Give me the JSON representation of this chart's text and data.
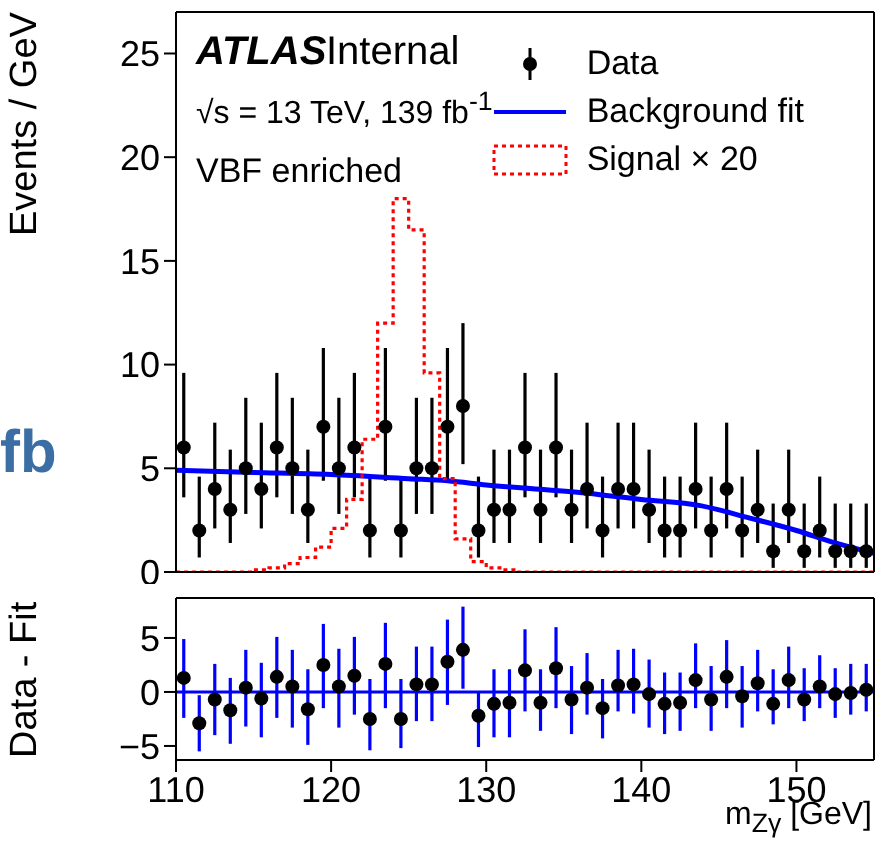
{
  "chart_data": [
    {
      "type": "scatter",
      "ylabel": "Events / GeV",
      "annotations": [
        "ATLAS",
        "Internal",
        "√s = 13 TeV, 139 fb$^{-1}$",
        "VBF enriched",
        "fb"
      ],
      "xlim": [
        110,
        155
      ],
      "xticks": [
        110,
        120,
        130,
        140,
        150
      ],
      "ylim": [
        0,
        27
      ],
      "yticks": [
        0,
        5,
        10,
        15,
        20,
        25
      ],
      "tick_labels": "y",
      "legend": "top right",
      "series": [
        {
          "name": "Data",
          "type": "scatter",
          "color": "#000000",
          "x": [
            110.5,
            111.5,
            112.5,
            113.5,
            114.5,
            115.5,
            116.5,
            117.5,
            118.5,
            119.5,
            120.5,
            121.5,
            122.5,
            123.5,
            124.5,
            125.5,
            126.5,
            127.5,
            128.5,
            129.5,
            130.5,
            131.5,
            132.5,
            133.5,
            134.5,
            135.5,
            136.5,
            137.5,
            138.5,
            139.5,
            140.5,
            141.5,
            142.5,
            143.5,
            144.5,
            145.5,
            146.5,
            147.5,
            148.5,
            149.5,
            150.5,
            151.5,
            152.5,
            153.5,
            154.5
          ],
          "values": [
            6,
            2,
            4,
            3,
            5,
            4,
            6,
            5,
            3,
            7,
            5,
            6,
            2,
            7,
            2,
            5,
            5,
            7,
            8,
            2,
            3,
            3,
            6,
            3,
            6,
            3,
            4,
            2,
            4,
            4,
            3,
            2,
            2,
            4,
            2,
            4,
            2,
            3,
            1,
            3,
            1,
            2,
            1,
            1,
            1
          ],
          "errors": [
            [
              3.6,
              9.6
            ],
            [
              0.7,
              4.6
            ],
            [
              2.1,
              7.2
            ],
            [
              1.4,
              5.9
            ],
            [
              2.8,
              8.4
            ],
            [
              2.1,
              7.2
            ],
            [
              3.6,
              9.6
            ],
            [
              2.8,
              8.4
            ],
            [
              1.4,
              5.9
            ],
            [
              4.4,
              10.8
            ],
            [
              2.8,
              8.4
            ],
            [
              3.6,
              9.6
            ],
            [
              0.7,
              4.6
            ],
            [
              4.4,
              10.8
            ],
            [
              0.7,
              4.6
            ],
            [
              2.8,
              8.4
            ],
            [
              2.8,
              8.4
            ],
            [
              4.4,
              10.8
            ],
            [
              5.2,
              12.0
            ],
            [
              0.7,
              4.6
            ],
            [
              1.4,
              5.9
            ],
            [
              1.4,
              5.9
            ],
            [
              3.6,
              9.6
            ],
            [
              1.4,
              5.9
            ],
            [
              3.6,
              9.6
            ],
            [
              1.4,
              5.9
            ],
            [
              2.1,
              7.2
            ],
            [
              0.7,
              4.6
            ],
            [
              2.1,
              7.2
            ],
            [
              2.1,
              7.2
            ],
            [
              1.4,
              5.9
            ],
            [
              0.7,
              4.6
            ],
            [
              0.7,
              4.6
            ],
            [
              2.1,
              7.2
            ],
            [
              0.7,
              4.6
            ],
            [
              2.1,
              7.2
            ],
            [
              0.7,
              4.6
            ],
            [
              1.4,
              5.9
            ],
            [
              0.2,
              3.3
            ],
            [
              1.4,
              5.9
            ],
            [
              0.2,
              3.3
            ],
            [
              0.7,
              4.6
            ],
            [
              0.2,
              3.3
            ],
            [
              0.2,
              3.3
            ],
            [
              0.2,
              3.3
            ]
          ]
        },
        {
          "name": "Background fit",
          "type": "line",
          "color": "#0000ff",
          "x": [
            110,
            115,
            120,
            125,
            127.5,
            130,
            136.5,
            140,
            143.8,
            147,
            150,
            152.5,
            155
          ],
          "values": [
            4.9,
            4.8,
            4.7,
            4.5,
            4.4,
            4.2,
            3.8,
            3.5,
            3.2,
            2.6,
            2.0,
            1.4,
            0.9
          ]
        },
        {
          "name": "Signal × 20",
          "type": "step",
          "color": "#ff0000",
          "line_style": "dotted",
          "x": [
            110,
            111,
            112,
            113,
            114,
            115,
            116,
            117,
            118,
            119,
            120,
            121,
            122,
            123,
            124,
            125,
            126,
            127,
            128,
            129,
            130,
            131,
            132,
            133,
            134,
            135,
            136,
            137,
            138,
            139,
            140,
            141,
            142,
            143,
            144,
            145,
            146,
            147,
            148,
            149,
            150,
            151,
            152,
            153,
            154,
            155
          ],
          "values": [
            0,
            0,
            0,
            0,
            0,
            0.1,
            0.2,
            0.4,
            0.7,
            1.2,
            2.1,
            3.5,
            6.4,
            12,
            18,
            16.5,
            9.6,
            4.5,
            1.6,
            0.5,
            0.2,
            0.1,
            0,
            0,
            0,
            0,
            0,
            0,
            0,
            0,
            0,
            0,
            0,
            0,
            0,
            0,
            0,
            0,
            0,
            0,
            0,
            0,
            0,
            0,
            0,
            0
          ]
        }
      ]
    },
    {
      "type": "scatter",
      "ylabel": "Data - Fit",
      "xlabel": "m$_{Zγ}$ [GeV]",
      "xlim": [
        110,
        155
      ],
      "xticks": [
        110,
        120,
        130,
        140,
        150
      ],
      "ylim": [
        -6.3,
        8.7
      ],
      "yticks": [
        -5,
        0,
        5
      ],
      "ref_lines": [
        {
          "axis": "y",
          "value": 0,
          "color": "#0000ff"
        }
      ],
      "series": [
        {
          "type": "scatter",
          "color": "#000000",
          "x": [
            110.5,
            111.5,
            112.5,
            113.5,
            114.5,
            115.5,
            116.5,
            117.5,
            118.5,
            119.5,
            120.5,
            121.5,
            122.5,
            123.5,
            124.5,
            125.5,
            126.5,
            127.5,
            128.5,
            129.5,
            130.5,
            131.5,
            132.5,
            133.5,
            134.5,
            135.5,
            136.5,
            137.5,
            138.5,
            139.5,
            140.5,
            141.5,
            142.5,
            143.5,
            144.5,
            145.5,
            146.5,
            147.5,
            148.5,
            149.5,
            150.5,
            151.5,
            152.5,
            153.5,
            154.5
          ],
          "values": [
            1.3,
            -2.9,
            -0.7,
            -1.7,
            0.4,
            -0.6,
            1.4,
            0.5,
            -1.6,
            2.5,
            0.5,
            1.5,
            -2.5,
            2.6,
            -2.5,
            0.7,
            0.7,
            2.8,
            3.9,
            -2.2,
            -1.1,
            -1.0,
            2.0,
            -1.0,
            2.2,
            -0.7,
            0.4,
            -1.5,
            0.6,
            0.7,
            -0.2,
            -1.1,
            -1.0,
            1.1,
            -0.7,
            1.4,
            -0.4,
            0.8,
            -1.1,
            1.1,
            -0.7,
            0.5,
            -0.2,
            -0.1,
            0.2
          ],
          "errors": [
            [
              -2.4,
              4.9
            ],
            [
              -5.5,
              -0.3
            ],
            [
              -4.0,
              2.6
            ],
            [
              -4.8,
              1.3
            ],
            [
              -3.2,
              3.9
            ],
            [
              -4.2,
              2.7
            ],
            [
              -2.4,
              5.1
            ],
            [
              -3.3,
              3.9
            ],
            [
              -4.9,
              2.1
            ],
            [
              -1.5,
              6.3
            ],
            [
              -3.3,
              4.0
            ],
            [
              -2.1,
              5.1
            ],
            [
              -5.4,
              1.2
            ],
            [
              -1.5,
              6.4
            ],
            [
              -5.2,
              1.2
            ],
            [
              -2.7,
              4.2
            ],
            [
              -2.7,
              4.2
            ],
            [
              -1.2,
              6.7
            ],
            [
              0.3,
              7.9
            ],
            [
              -5.1,
              0.0
            ],
            [
              -4.2,
              2.1
            ],
            [
              -4.2,
              2.1
            ],
            [
              -1.8,
              5.8
            ],
            [
              -3.6,
              2.1
            ],
            [
              -1.5,
              6.0
            ],
            [
              -3.9,
              2.4
            ],
            [
              -2.1,
              3.6
            ],
            [
              -4.3,
              1.2
            ],
            [
              -1.8,
              3.9
            ],
            [
              -2.0,
              4.0
            ],
            [
              -3.3,
              3.0
            ],
            [
              -3.9,
              1.8
            ],
            [
              -3.6,
              1.8
            ],
            [
              -1.5,
              4.5
            ],
            [
              -3.6,
              2.4
            ],
            [
              -1.5,
              4.8
            ],
            [
              -3.3,
              2.4
            ],
            [
              -1.8,
              3.9
            ],
            [
              -3.0,
              2.1
            ],
            [
              -1.5,
              4.2
            ],
            [
              -2.7,
              2.2
            ],
            [
              -1.5,
              3.4
            ],
            [
              -2.4,
              2.2
            ],
            [
              -2.1,
              2.6
            ],
            [
              -1.8,
              2.6
            ]
          ]
        }
      ]
    }
  ]
}
